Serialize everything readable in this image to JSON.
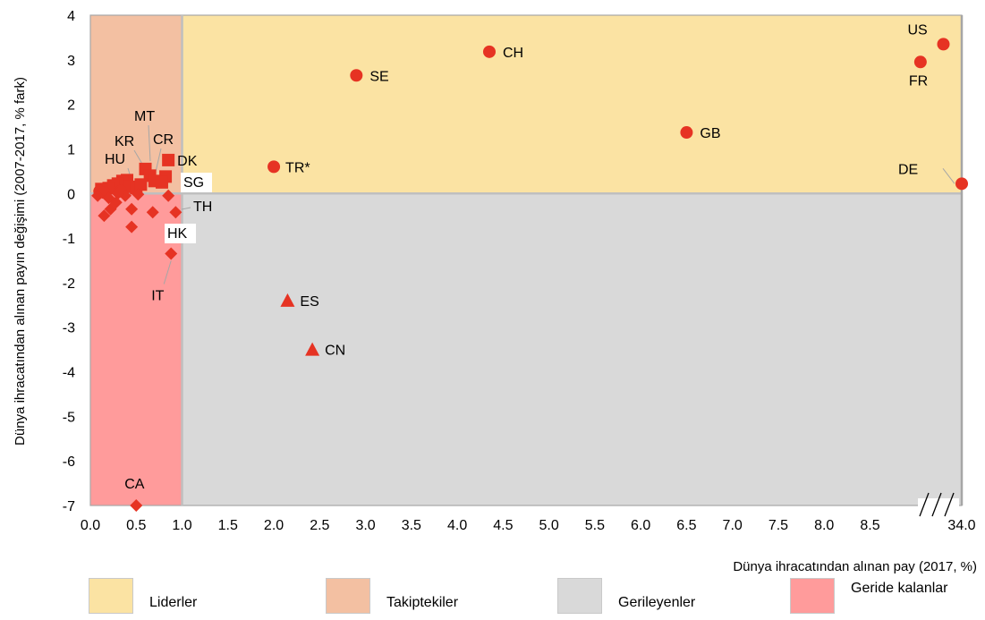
{
  "chart_data": {
    "type": "scatter",
    "title": "",
    "xlabel": "Dünya ihracatından alınan pay (2017, %)",
    "ylabel": "Dünya ihracatından alınan payın değişimi (2007-2017, % fark)",
    "xlim": [
      0,
      9.5
    ],
    "ylim": [
      -7,
      4
    ],
    "x_tick_labels": [
      "0.0",
      "0.5",
      "1.0",
      "1.5",
      "2.0",
      "2.5",
      "3.0",
      "3.5",
      "4.0",
      "4.5",
      "5.0",
      "5.5",
      "6.0",
      "6.5",
      "7.0",
      "7.5",
      "8.0",
      "8.5",
      "34.0"
    ],
    "y_tick_labels": [
      "4",
      "3",
      "2",
      "1",
      "0",
      "-1",
      "-2",
      "-3",
      "-4",
      "-5",
      "-6",
      "-7"
    ],
    "axis_break": "//",
    "quadrants": [
      {
        "name": "Liderler",
        "color": "#fbe3a3"
      },
      {
        "name": "Takiptekiler",
        "color": "#f3c0a2"
      },
      {
        "name": "Gerileyenler",
        "color": "#d9d9d9"
      },
      {
        "name": "Geride kalanlar",
        "color": "#ff9b9b"
      }
    ],
    "quadrant_divider_x": 1.0,
    "marker_color": "#e63323",
    "named_points": [
      {
        "label": "US",
        "x": 9.3,
        "y": 3.35,
        "shape": "circle"
      },
      {
        "label": "FR",
        "x": 9.05,
        "y": 2.95,
        "shape": "circle"
      },
      {
        "label": "CH",
        "x": 4.35,
        "y": 3.18,
        "shape": "circle"
      },
      {
        "label": "SE",
        "x": 2.9,
        "y": 2.65,
        "shape": "circle"
      },
      {
        "label": "GB",
        "x": 6.5,
        "y": 1.37,
        "shape": "circle"
      },
      {
        "label": "TR*",
        "x": 2.0,
        "y": 0.6,
        "shape": "circle"
      },
      {
        "label": "DE",
        "x": 9.5,
        "y": 0.22,
        "shape": "circle"
      },
      {
        "label": "DK",
        "x": 0.85,
        "y": 0.75,
        "shape": "square"
      },
      {
        "label": "ES",
        "x": 2.15,
        "y": -2.4,
        "shape": "triangle"
      },
      {
        "label": "CN",
        "x": 2.42,
        "y": -3.5,
        "shape": "triangle"
      },
      {
        "label": "CA",
        "x": 0.5,
        "y": -7.0,
        "shape": "diamond"
      },
      {
        "label": "IT",
        "x": 0.88,
        "y": -1.35,
        "shape": "diamond"
      }
    ],
    "cluster_labels": [
      "MT",
      "KR",
      "CR",
      "HU",
      "SG",
      "TH",
      "HK"
    ],
    "other_points": [
      {
        "x": 0.6,
        "y": 0.55,
        "shape": "square"
      },
      {
        "x": 0.65,
        "y": 0.4,
        "shape": "square"
      },
      {
        "x": 0.82,
        "y": 0.38,
        "shape": "square"
      },
      {
        "x": 0.7,
        "y": 0.28,
        "shape": "square"
      },
      {
        "x": 0.4,
        "y": 0.3,
        "shape": "square"
      },
      {
        "x": 0.35,
        "y": 0.28,
        "shape": "square"
      },
      {
        "x": 0.3,
        "y": 0.22,
        "shape": "square"
      },
      {
        "x": 0.25,
        "y": 0.18,
        "shape": "square"
      },
      {
        "x": 0.43,
        "y": 0.15,
        "shape": "square"
      },
      {
        "x": 0.5,
        "y": 0.12,
        "shape": "square"
      },
      {
        "x": 0.2,
        "y": 0.12,
        "shape": "square"
      },
      {
        "x": 0.12,
        "y": 0.1,
        "shape": "square"
      },
      {
        "x": 0.55,
        "y": 0.2,
        "shape": "square"
      },
      {
        "x": 0.78,
        "y": 0.25,
        "shape": "square"
      },
      {
        "x": 0.1,
        "y": 0.05,
        "shape": "circle"
      },
      {
        "x": 0.33,
        "y": 0.05,
        "shape": "circle"
      },
      {
        "x": 0.15,
        "y": 0.02,
        "shape": "circle"
      },
      {
        "x": 0.08,
        "y": -0.05,
        "shape": "diamond"
      },
      {
        "x": 0.2,
        "y": -0.1,
        "shape": "diamond"
      },
      {
        "x": 0.28,
        "y": -0.2,
        "shape": "diamond"
      },
      {
        "x": 0.22,
        "y": -0.35,
        "shape": "diamond"
      },
      {
        "x": 0.15,
        "y": -0.5,
        "shape": "diamond"
      },
      {
        "x": 0.38,
        "y": -0.05,
        "shape": "diamond"
      },
      {
        "x": 0.45,
        "y": -0.35,
        "shape": "diamond"
      },
      {
        "x": 0.52,
        "y": -0.02,
        "shape": "diamond"
      },
      {
        "x": 0.68,
        "y": -0.42,
        "shape": "diamond"
      },
      {
        "x": 0.85,
        "y": -0.05,
        "shape": "diamond"
      },
      {
        "x": 0.93,
        "y": -0.42,
        "shape": "diamond"
      },
      {
        "x": 0.45,
        "y": -0.75,
        "shape": "diamond"
      },
      {
        "x": 0.3,
        "y": 0.0,
        "shape": "diamond"
      }
    ]
  }
}
